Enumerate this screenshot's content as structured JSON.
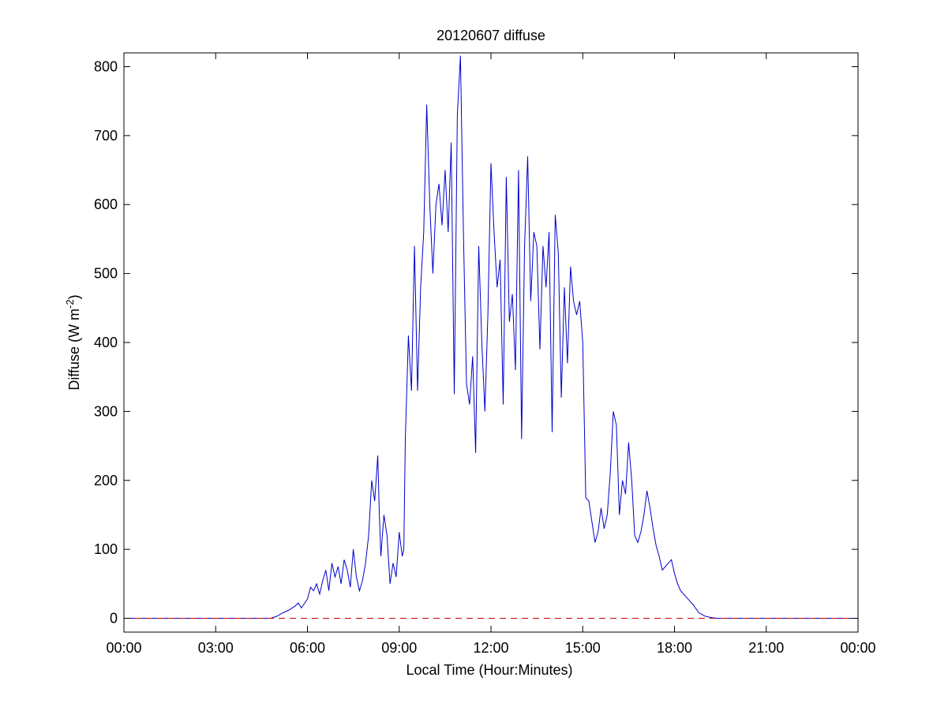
{
  "chart_data": {
    "type": "line",
    "title": "20120607 diffuse",
    "xlabel": "Local Time (Hour:Minutes)",
    "ylabel": "Diffuse (W m",
    "ylabel_superscript": "-2",
    "ylabel_close": ")",
    "xlim": [
      0,
      24
    ],
    "ylim": [
      -20,
      820
    ],
    "x_ticks": [
      0,
      3,
      6,
      9,
      12,
      15,
      18,
      21,
      24
    ],
    "x_tick_labels": [
      "00:00",
      "03:00",
      "06:00",
      "09:00",
      "12:00",
      "15:00",
      "18:00",
      "21:00",
      "00:00"
    ],
    "y_ticks": [
      0,
      100,
      200,
      300,
      400,
      500,
      600,
      700,
      800
    ],
    "y_tick_labels": [
      "0",
      "100",
      "200",
      "300",
      "400",
      "500",
      "600",
      "700",
      "800"
    ],
    "grid": false,
    "series": [
      {
        "color": "#0000cc",
        "style": "solid",
        "x": [
          0.0,
          4.8,
          5.0,
          5.2,
          5.4,
          5.6,
          5.7,
          5.8,
          6.0,
          6.1,
          6.2,
          6.3,
          6.4,
          6.5,
          6.6,
          6.7,
          6.8,
          6.9,
          7.0,
          7.1,
          7.2,
          7.3,
          7.4,
          7.5,
          7.6,
          7.7,
          7.8,
          7.9,
          8.0,
          8.1,
          8.2,
          8.3,
          8.35,
          8.4,
          8.5,
          8.6,
          8.7,
          8.8,
          8.9,
          9.0,
          9.1,
          9.15,
          9.2,
          9.3,
          9.4,
          9.5,
          9.6,
          9.7,
          9.8,
          9.9,
          10.0,
          10.1,
          10.2,
          10.3,
          10.4,
          10.5,
          10.6,
          10.7,
          10.8,
          10.9,
          11.0,
          11.1,
          11.2,
          11.3,
          11.4,
          11.5,
          11.6,
          11.7,
          11.8,
          11.9,
          12.0,
          12.1,
          12.2,
          12.3,
          12.4,
          12.5,
          12.6,
          12.7,
          12.8,
          12.9,
          13.0,
          13.1,
          13.2,
          13.3,
          13.4,
          13.5,
          13.6,
          13.7,
          13.8,
          13.9,
          14.0,
          14.1,
          14.2,
          14.3,
          14.4,
          14.5,
          14.6,
          14.7,
          14.8,
          14.9,
          15.0,
          15.1,
          15.2,
          15.3,
          15.4,
          15.5,
          15.6,
          15.7,
          15.8,
          15.9,
          16.0,
          16.1,
          16.2,
          16.3,
          16.4,
          16.5,
          16.6,
          16.7,
          16.8,
          16.9,
          17.0,
          17.1,
          17.2,
          17.3,
          17.4,
          17.5,
          17.6,
          17.7,
          17.8,
          17.9,
          18.0,
          18.1,
          18.2,
          18.4,
          18.6,
          18.8,
          19.0,
          19.2,
          19.4,
          19.6,
          20.0,
          24.0
        ],
        "y": [
          0,
          0,
          3,
          8,
          12,
          18,
          22,
          15,
          28,
          45,
          40,
          50,
          35,
          55,
          70,
          40,
          80,
          60,
          75,
          50,
          85,
          70,
          45,
          100,
          60,
          40,
          55,
          80,
          120,
          200,
          170,
          236,
          150,
          90,
          150,
          120,
          50,
          80,
          60,
          125,
          90,
          100,
          260,
          410,
          330,
          540,
          330,
          480,
          560,
          745,
          600,
          500,
          600,
          630,
          570,
          650,
          560,
          690,
          325,
          730,
          816,
          560,
          340,
          310,
          380,
          240,
          540,
          400,
          300,
          440,
          660,
          560,
          480,
          520,
          310,
          640,
          430,
          470,
          360,
          650,
          260,
          540,
          670,
          460,
          560,
          540,
          390,
          540,
          480,
          560,
          270,
          585,
          530,
          320,
          480,
          370,
          510,
          460,
          440,
          460,
          400,
          175,
          170,
          140,
          110,
          125,
          160,
          130,
          150,
          210,
          300,
          280,
          150,
          200,
          180,
          255,
          200,
          120,
          110,
          125,
          150,
          185,
          160,
          130,
          105,
          90,
          70,
          75,
          80,
          85,
          65,
          50,
          40,
          30,
          20,
          8,
          3,
          1,
          0,
          0,
          0,
          0
        ]
      },
      {
        "color": "#cc0000",
        "style": "dashed",
        "x": [
          0,
          24
        ],
        "y": [
          0,
          0
        ]
      }
    ]
  }
}
